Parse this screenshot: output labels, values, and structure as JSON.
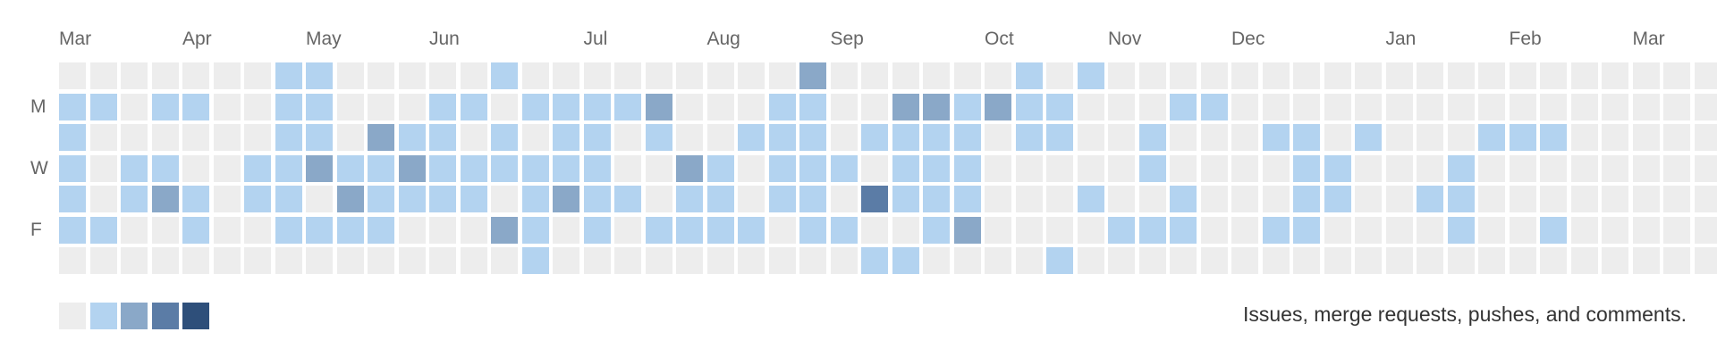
{
  "months": [
    {
      "label": "Mar",
      "col": 0
    },
    {
      "label": "Apr",
      "col": 4
    },
    {
      "label": "May",
      "col": 8
    },
    {
      "label": "Jun",
      "col": 12
    },
    {
      "label": "Jul",
      "col": 17
    },
    {
      "label": "Aug",
      "col": 21
    },
    {
      "label": "Sep",
      "col": 25
    },
    {
      "label": "Oct",
      "col": 30
    },
    {
      "label": "Nov",
      "col": 34
    },
    {
      "label": "Dec",
      "col": 38
    },
    {
      "label": "Jan",
      "col": 43
    },
    {
      "label": "Feb",
      "col": 47
    },
    {
      "label": "Mar",
      "col": 51
    }
  ],
  "day_labels": [
    {
      "label": "M",
      "row": 1
    },
    {
      "label": "W",
      "row": 3
    },
    {
      "label": "F",
      "row": 5
    }
  ],
  "colors": {
    "levels": [
      "#ededed",
      "#b3d3f0",
      "#8aa8c8",
      "#5b7ca6",
      "#2e4f7a"
    ]
  },
  "activity": {
    "rows": [
      "0000000110000010000000002000000101000000000000000000000",
      "1101100110001101111200011002212110001100000000000000000",
      "1000000110211010110100111011110110010001101000111000000",
      "1011001121121111110021011101110000010000110001000000000",
      "1012101102111101211011011031110001001000110011000000000",
      "1100100111100021010111101100120000111001100001001000000",
      "000000000000000100000000001100001000000000000000000000"
    ]
  },
  "legend": {
    "levels": [
      0,
      1,
      2,
      3,
      4
    ],
    "description": "Issues, merge requests, pushes, and comments."
  }
}
